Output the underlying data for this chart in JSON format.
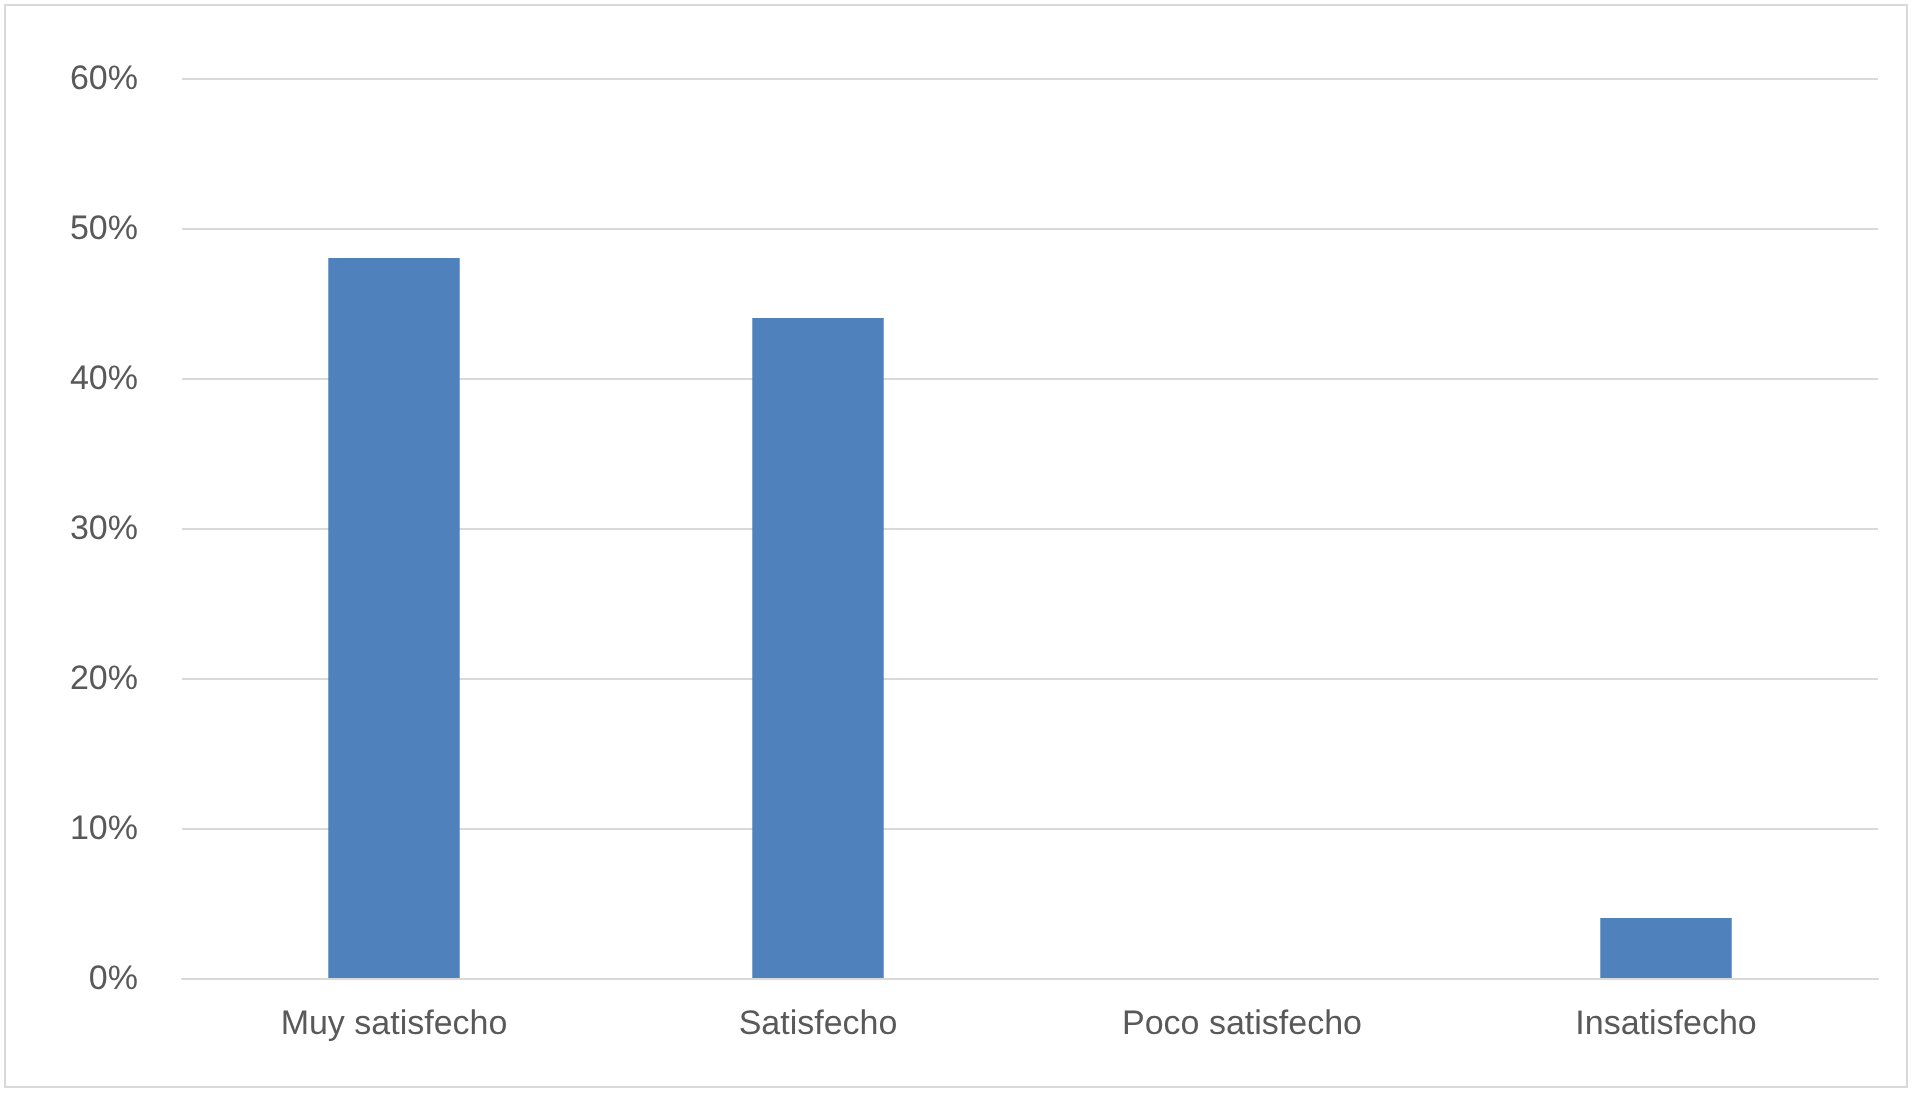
{
  "chart_data": {
    "type": "bar",
    "categories": [
      "Muy satisfecho",
      "Satisfecho",
      "Poco satisfecho",
      "Insatisfecho"
    ],
    "values": [
      48,
      44,
      0,
      4
    ],
    "color": "#4f81bd",
    "ylim": [
      0,
      60
    ],
    "yticks": [
      {
        "value": 0,
        "label": "0%"
      },
      {
        "value": 10,
        "label": "10%"
      },
      {
        "value": 20,
        "label": "20%"
      },
      {
        "value": 30,
        "label": "30%"
      },
      {
        "value": 40,
        "label": "40%"
      },
      {
        "value": 50,
        "label": "50%"
      },
      {
        "value": 60,
        "label": "60%"
      }
    ],
    "grid": "y"
  }
}
